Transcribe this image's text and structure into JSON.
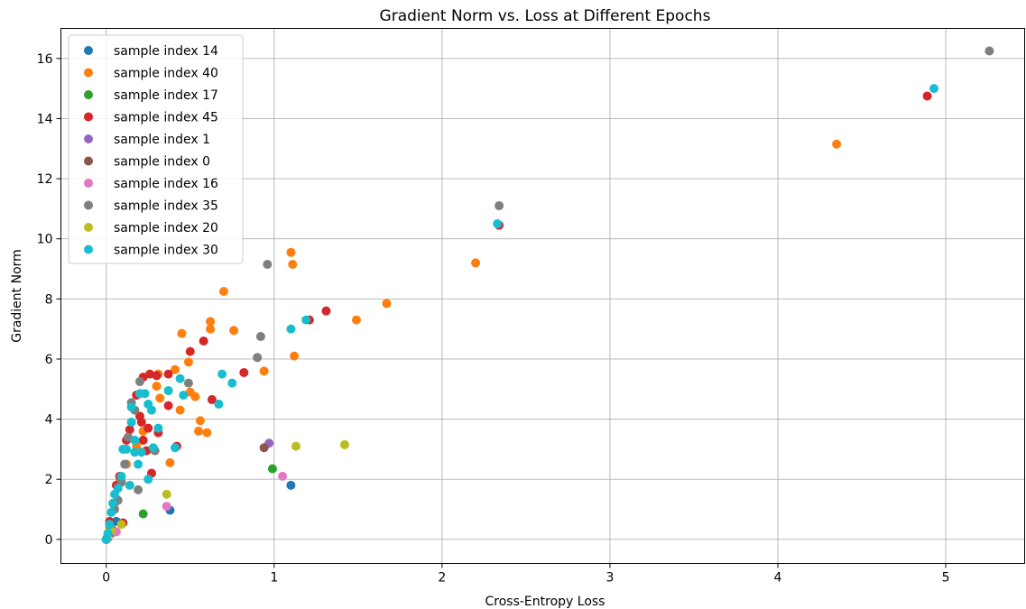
{
  "chart_data": {
    "type": "scatter",
    "title": "Gradient Norm vs. Loss at Different Epochs",
    "xlabel": "Cross-Entropy Loss",
    "ylabel": "Gradient Norm",
    "xlim": [
      -0.27,
      5.47
    ],
    "ylim": [
      -0.8,
      17.0
    ],
    "xticks": [
      0,
      1,
      2,
      3,
      4,
      5
    ],
    "yticks": [
      0,
      2,
      4,
      6,
      8,
      10,
      12,
      14,
      16
    ],
    "grid": true,
    "legend_position": "top-left",
    "series": [
      {
        "name": "sample index 14",
        "color": "#1f77b4",
        "points": [
          [
            0.0,
            0.0
          ],
          [
            0.01,
            0.12
          ],
          [
            0.03,
            0.35
          ],
          [
            0.06,
            0.6
          ],
          [
            0.38,
            0.97
          ],
          [
            1.1,
            1.8
          ]
        ]
      },
      {
        "name": "sample index 40",
        "color": "#ff7f0e",
        "points": [
          [
            0.0,
            0.0
          ],
          [
            0.02,
            0.4
          ],
          [
            0.05,
            1.2
          ],
          [
            0.08,
            1.9
          ],
          [
            0.12,
            2.5
          ],
          [
            0.18,
            3.1
          ],
          [
            0.22,
            3.6
          ],
          [
            0.3,
            5.1
          ],
          [
            0.31,
            5.5
          ],
          [
            0.32,
            4.7
          ],
          [
            0.38,
            2.55
          ],
          [
            0.41,
            5.65
          ],
          [
            0.44,
            4.3
          ],
          [
            0.45,
            6.85
          ],
          [
            0.49,
            5.9
          ],
          [
            0.5,
            4.9
          ],
          [
            0.53,
            4.75
          ],
          [
            0.55,
            3.6
          ],
          [
            0.56,
            3.95
          ],
          [
            0.6,
            3.55
          ],
          [
            0.62,
            7.25
          ],
          [
            0.62,
            7.0
          ],
          [
            0.7,
            8.25
          ],
          [
            0.76,
            6.95
          ],
          [
            0.94,
            5.6
          ],
          [
            1.1,
            9.55
          ],
          [
            1.11,
            9.15
          ],
          [
            1.12,
            6.1
          ],
          [
            1.49,
            7.3
          ],
          [
            1.67,
            7.85
          ],
          [
            2.2,
            9.2
          ],
          [
            4.35,
            13.15
          ]
        ]
      },
      {
        "name": "sample index 17",
        "color": "#2ca02c",
        "points": [
          [
            0.0,
            0.0
          ],
          [
            0.01,
            0.05
          ],
          [
            0.03,
            0.25
          ],
          [
            0.22,
            0.85
          ],
          [
            0.99,
            2.35
          ]
        ]
      },
      {
        "name": "sample index 45",
        "color": "#d62728",
        "points": [
          [
            0.0,
            0.0
          ],
          [
            0.02,
            0.6
          ],
          [
            0.04,
            1.2
          ],
          [
            0.06,
            1.8
          ],
          [
            0.08,
            2.1
          ],
          [
            0.1,
            0.55
          ],
          [
            0.12,
            3.3
          ],
          [
            0.14,
            3.65
          ],
          [
            0.18,
            4.8
          ],
          [
            0.2,
            4.1
          ],
          [
            0.21,
            3.9
          ],
          [
            0.22,
            3.3
          ],
          [
            0.22,
            5.4
          ],
          [
            0.24,
            2.95
          ],
          [
            0.25,
            3.7
          ],
          [
            0.26,
            5.5
          ],
          [
            0.27,
            2.2
          ],
          [
            0.3,
            5.45
          ],
          [
            0.31,
            3.55
          ],
          [
            0.37,
            4.45
          ],
          [
            0.37,
            5.5
          ],
          [
            0.42,
            3.1
          ],
          [
            0.5,
            6.25
          ],
          [
            0.58,
            6.6
          ],
          [
            0.63,
            4.65
          ],
          [
            0.82,
            5.55
          ],
          [
            1.21,
            7.3
          ],
          [
            1.31,
            7.6
          ],
          [
            2.34,
            10.45
          ],
          [
            4.89,
            14.75
          ]
        ]
      },
      {
        "name": "sample index 1",
        "color": "#9467bd",
        "points": [
          [
            0.0,
            0.0
          ],
          [
            0.01,
            0.08
          ],
          [
            0.03,
            0.2
          ],
          [
            0.97,
            3.2
          ]
        ]
      },
      {
        "name": "sample index 0",
        "color": "#8c564b",
        "points": [
          [
            0.0,
            0.0
          ],
          [
            0.01,
            0.1
          ],
          [
            0.04,
            0.3
          ],
          [
            0.94,
            3.05
          ]
        ]
      },
      {
        "name": "sample index 16",
        "color": "#e377c2",
        "points": [
          [
            0.0,
            0.0
          ],
          [
            0.01,
            0.08
          ],
          [
            0.06,
            0.25
          ],
          [
            0.36,
            1.1
          ],
          [
            1.05,
            2.1
          ]
        ]
      },
      {
        "name": "sample index 35",
        "color": "#7f7f7f",
        "points": [
          [
            0.0,
            0.0
          ],
          [
            0.02,
            0.5
          ],
          [
            0.05,
            1.0
          ],
          [
            0.07,
            1.3
          ],
          [
            0.09,
            1.9
          ],
          [
            0.11,
            2.5
          ],
          [
            0.13,
            3.4
          ],
          [
            0.15,
            4.55
          ],
          [
            0.17,
            4.3
          ],
          [
            0.19,
            1.65
          ],
          [
            0.2,
            5.25
          ],
          [
            0.29,
            2.95
          ],
          [
            0.49,
            5.2
          ],
          [
            0.9,
            6.05
          ],
          [
            0.92,
            6.75
          ],
          [
            0.96,
            9.15
          ],
          [
            2.34,
            11.1
          ],
          [
            5.26,
            16.25
          ]
        ]
      },
      {
        "name": "sample index 20",
        "color": "#bcbd22",
        "points": [
          [
            0.0,
            0.0
          ],
          [
            0.01,
            0.1
          ],
          [
            0.03,
            0.3
          ],
          [
            0.09,
            0.5
          ],
          [
            0.36,
            1.5
          ],
          [
            1.13,
            3.1
          ],
          [
            1.42,
            3.15
          ]
        ]
      },
      {
        "name": "sample index 30",
        "color": "#17becf",
        "points": [
          [
            0.0,
            0.0
          ],
          [
            0.01,
            0.2
          ],
          [
            0.02,
            0.5
          ],
          [
            0.03,
            0.9
          ],
          [
            0.04,
            1.2
          ],
          [
            0.05,
            1.5
          ],
          [
            0.07,
            1.7
          ],
          [
            0.09,
            2.1
          ],
          [
            0.1,
            3.0
          ],
          [
            0.12,
            3.0
          ],
          [
            0.14,
            1.8
          ],
          [
            0.15,
            4.4
          ],
          [
            0.15,
            3.9
          ],
          [
            0.17,
            3.3
          ],
          [
            0.17,
            2.9
          ],
          [
            0.19,
            2.5
          ],
          [
            0.2,
            4.85
          ],
          [
            0.21,
            2.9
          ],
          [
            0.23,
            4.85
          ],
          [
            0.25,
            2.0
          ],
          [
            0.25,
            4.5
          ],
          [
            0.27,
            4.3
          ],
          [
            0.28,
            3.05
          ],
          [
            0.31,
            3.7
          ],
          [
            0.37,
            4.95
          ],
          [
            0.41,
            3.05
          ],
          [
            0.44,
            5.35
          ],
          [
            0.46,
            4.8
          ],
          [
            0.67,
            4.5
          ],
          [
            0.69,
            5.5
          ],
          [
            0.75,
            5.2
          ],
          [
            1.1,
            7.0
          ],
          [
            1.19,
            7.3
          ],
          [
            2.33,
            10.5
          ],
          [
            4.93,
            15.0
          ]
        ]
      }
    ]
  }
}
